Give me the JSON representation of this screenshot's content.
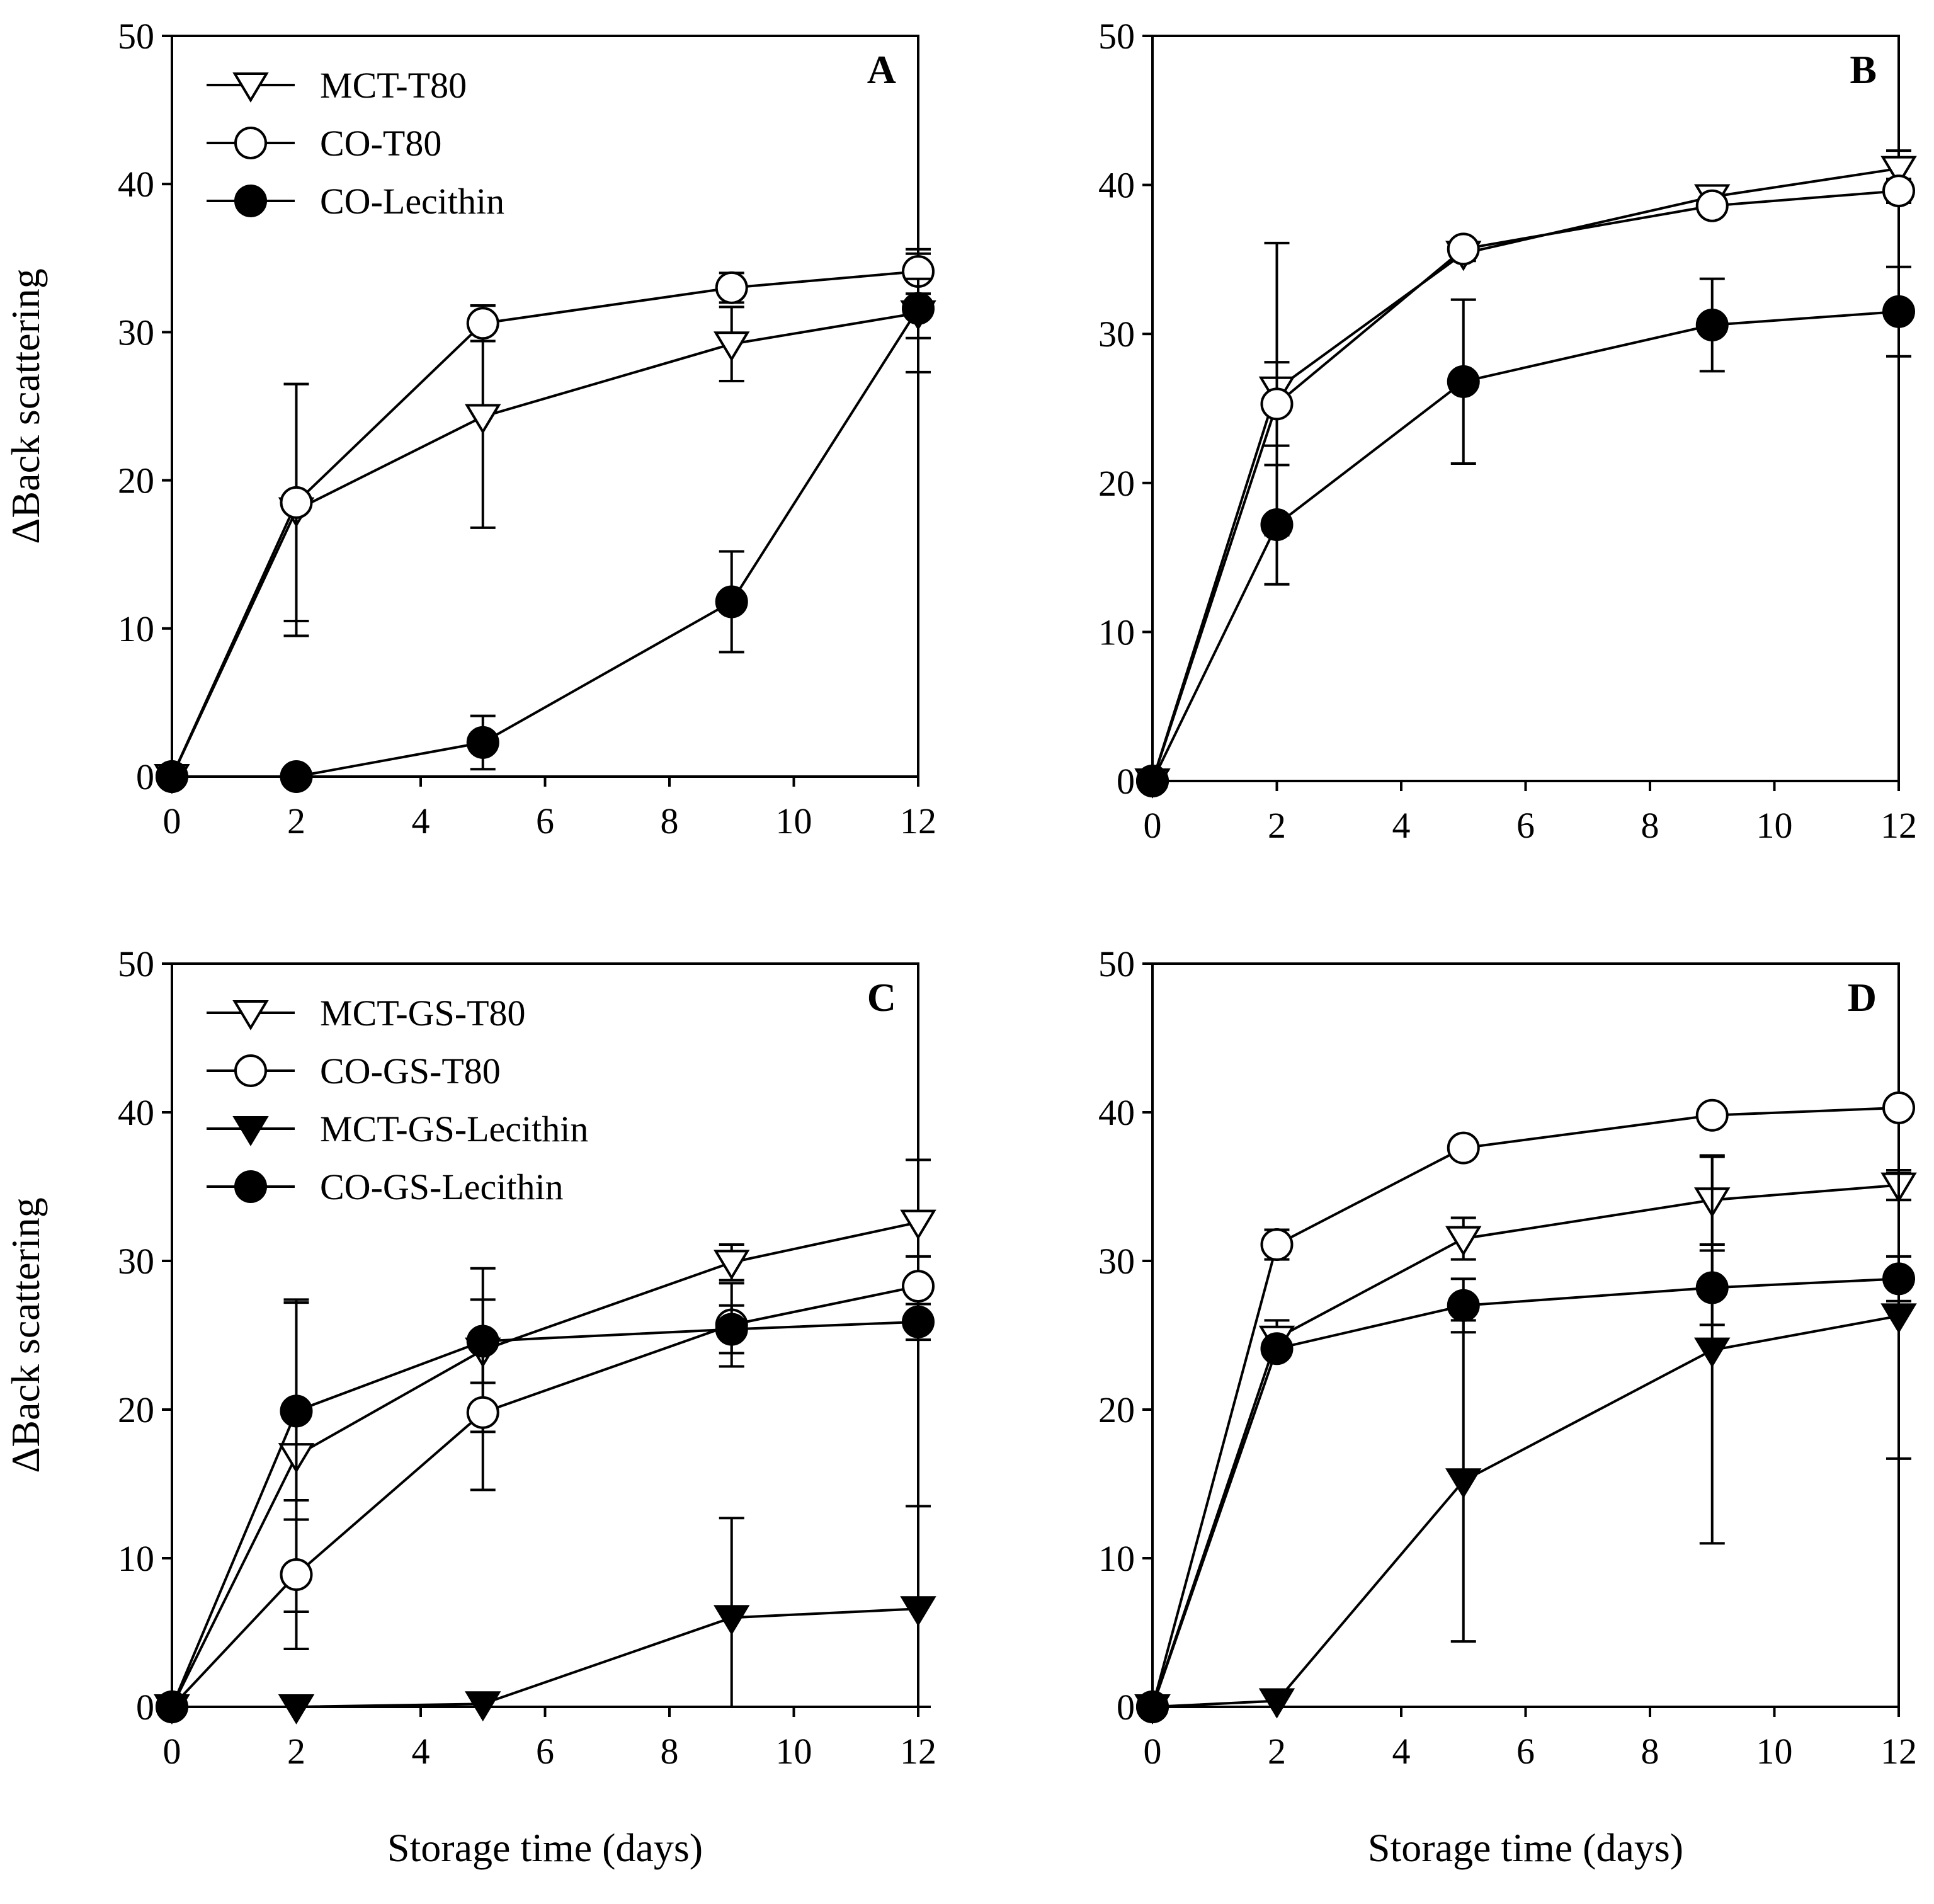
{
  "chart_data": [
    {
      "type": "line",
      "panel_label": "A",
      "xlabel": "",
      "ylabel": "ΔBack scattering",
      "xlim": [
        0,
        12
      ],
      "ylim": [
        0,
        50
      ],
      "xticks": [
        "0",
        "2",
        "4",
        "6",
        "8",
        "10",
        "12"
      ],
      "yticks": [
        "0",
        "10",
        "20",
        "30",
        "40",
        "50"
      ],
      "grid": false,
      "legend": "top-left",
      "series": [
        {
          "name": "MCT-T80",
          "marker": "triangle-down-open",
          "x": [
            0,
            2,
            5,
            9,
            12
          ],
          "y": [
            0,
            18,
            24.3,
            29.2,
            31.3
          ],
          "err": [
            0,
            8.5,
            7.5,
            2.5,
            4
          ]
        },
        {
          "name": "CO-T80",
          "marker": "circle-open",
          "x": [
            0,
            2,
            5,
            9,
            12
          ],
          "y": [
            0,
            18.5,
            30.6,
            33,
            34.1
          ],
          "err": [
            0,
            8,
            1.2,
            1,
            1.5
          ]
        },
        {
          "name": "CO-Lecithin",
          "marker": "circle-filled",
          "x": [
            0,
            2,
            5,
            9,
            12
          ],
          "y": [
            0,
            0,
            2.3,
            11.8,
            31.6
          ],
          "err": [
            0,
            0,
            1.8,
            3.4,
            2
          ]
        }
      ]
    },
    {
      "type": "line",
      "panel_label": "B",
      "xlabel": "",
      "ylabel": "",
      "xlim": [
        0,
        12
      ],
      "ylim": [
        0,
        50
      ],
      "xticks": [
        "0",
        "2",
        "4",
        "6",
        "8",
        "10",
        "12"
      ],
      "yticks": [
        "0",
        "10",
        "20",
        "30",
        "40",
        "50"
      ],
      "grid": false,
      "series": [
        {
          "marker": "triangle-down-open",
          "x": [
            0,
            2,
            5,
            9,
            12
          ],
          "y": [
            0,
            26.3,
            35.4,
            39.2,
            41.1
          ],
          "err": [
            0,
            9.8,
            0.5,
            0.5,
            1.2
          ]
        },
        {
          "marker": "circle-open",
          "x": [
            0,
            2,
            5,
            9,
            12
          ],
          "y": [
            0,
            25.3,
            35.7,
            38.6,
            39.6
          ],
          "err": [
            0,
            2.8,
            0.5,
            0.5,
            0.8
          ]
        },
        {
          "marker": "circle-filled",
          "x": [
            0,
            2,
            5,
            9,
            12
          ],
          "y": [
            0,
            17.2,
            26.8,
            30.6,
            31.5
          ],
          "err": [
            0,
            4,
            5.5,
            3.1,
            3
          ]
        }
      ]
    },
    {
      "type": "line",
      "panel_label": "C",
      "xlabel": "Storage time (days)",
      "ylabel": "ΔBack scattering",
      "xlim": [
        0,
        12
      ],
      "ylim": [
        0,
        50
      ],
      "xticks": [
        "0",
        "2",
        "4",
        "6",
        "8",
        "10",
        "12"
      ],
      "yticks": [
        "0",
        "10",
        "20",
        "30",
        "40",
        "50"
      ],
      "grid": false,
      "legend": "top-left",
      "series": [
        {
          "name": "MCT-GS-T80",
          "marker": "triangle-down-open",
          "x": [
            0,
            2,
            5,
            9,
            12
          ],
          "y": [
            0,
            16.9,
            24,
            29.9,
            32.6
          ],
          "err": [
            0,
            10.5,
            5.5,
            1.2,
            4.2
          ]
        },
        {
          "name": "CO-GS-T80",
          "marker": "circle-open",
          "x": [
            0,
            2,
            5,
            9,
            12
          ],
          "y": [
            0,
            8.9,
            19.8,
            25.7,
            28.3
          ],
          "err": [
            0,
            5,
            5.2,
            2.8,
            2
          ]
        },
        {
          "name": "MCT-GS-Lecithin",
          "marker": "triangle-down-filled",
          "x": [
            0,
            2,
            5,
            9,
            12
          ],
          "y": [
            0,
            0,
            0.2,
            6,
            6.6
          ],
          "err": [
            0,
            0,
            0,
            6.7,
            6.9
          ]
        },
        {
          "name": "CO-GS-Lecithin",
          "marker": "circle-filled",
          "x": [
            0,
            2,
            5,
            9,
            12
          ],
          "y": [
            0,
            19.9,
            24.6,
            25.4,
            25.9
          ],
          "err": [
            0,
            7.3,
            2.8,
            1.6,
            1.2
          ]
        }
      ]
    },
    {
      "type": "line",
      "panel_label": "D",
      "xlabel": "Storage time (days)",
      "ylabel": "",
      "xlim": [
        0,
        12
      ],
      "ylim": [
        0,
        50
      ],
      "xticks": [
        "0",
        "2",
        "4",
        "6",
        "8",
        "10",
        "12"
      ],
      "yticks": [
        "0",
        "10",
        "20",
        "30",
        "40",
        "50"
      ],
      "grid": false,
      "series": [
        {
          "marker": "triangle-down-open",
          "x": [
            0,
            2,
            5,
            9,
            12
          ],
          "y": [
            0,
            24.8,
            31.5,
            34.1,
            35.1
          ],
          "err": [
            0,
            1.2,
            1.4,
            3,
            1
          ]
        },
        {
          "marker": "circle-open",
          "x": [
            0,
            2,
            5,
            9,
            12
          ],
          "y": [
            0,
            31.1,
            37.6,
            39.8,
            40.3
          ],
          "err": [
            0,
            1,
            0.5,
            0.5,
            0.5
          ]
        },
        {
          "marker": "triangle-down-filled",
          "x": [
            0,
            2,
            5,
            9,
            12
          ],
          "y": [
            0,
            0.4,
            15.2,
            24,
            26.3
          ],
          "err": [
            0,
            0.4,
            10.8,
            13,
            9.6
          ]
        },
        {
          "marker": "circle-filled",
          "x": [
            0,
            2,
            5,
            9,
            12
          ],
          "y": [
            0,
            24.1,
            27,
            28.2,
            28.8
          ],
          "err": [
            0,
            0.5,
            1.8,
            2.5,
            1.5
          ]
        }
      ]
    }
  ]
}
